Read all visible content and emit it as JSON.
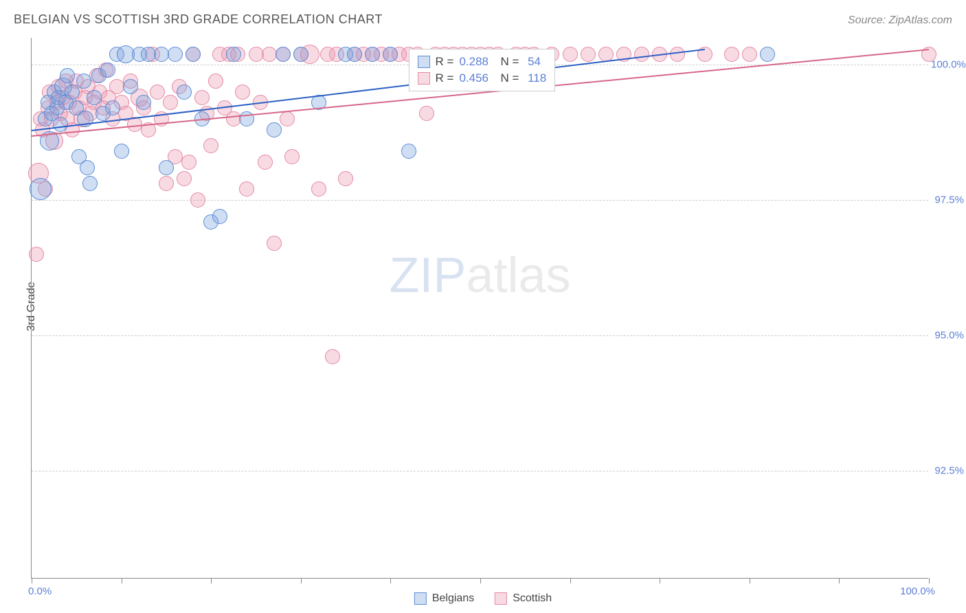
{
  "header": {
    "title": "BELGIAN VS SCOTTISH 3RD GRADE CORRELATION CHART",
    "source": "Source: ZipAtlas.com"
  },
  "watermark": {
    "part1": "ZIP",
    "part2": "atlas"
  },
  "chart": {
    "type": "scatter",
    "ylabel": "3rd Grade",
    "xlim": [
      0,
      100
    ],
    "ylim": [
      90.5,
      100.5
    ],
    "xtick_positions": [
      0,
      10,
      20,
      30,
      40,
      50,
      60,
      70,
      80,
      90,
      100
    ],
    "xtick_labels": {
      "first": "0.0%",
      "last": "100.0%"
    },
    "ytick_positions": [
      92.5,
      95.0,
      97.5,
      100.0
    ],
    "ytick_labels": [
      "92.5%",
      "95.0%",
      "97.5%",
      "100.0%"
    ],
    "background_color": "#ffffff",
    "grid_color": "#cccccc",
    "axis_color": "#888888",
    "tick_label_color": "#5b7fd6",
    "series": {
      "belgians": {
        "label": "Belgians",
        "fill_color": "rgba(120, 160, 220, 0.35)",
        "stroke_color": "#5b8cd6",
        "trend_color": "#2b5fc4",
        "marker_radius": 11,
        "R": "0.288",
        "N": "54",
        "trend": {
          "x1": 0,
          "y1": 98.8,
          "x2": 75,
          "y2": 100.3
        },
        "points": [
          [
            1.0,
            97.7,
            16
          ],
          [
            1.5,
            99.0,
            11
          ],
          [
            1.8,
            99.3,
            11
          ],
          [
            2.0,
            98.6,
            14
          ],
          [
            2.2,
            99.1,
            11
          ],
          [
            2.5,
            99.5,
            11
          ],
          [
            2.8,
            99.2,
            11
          ],
          [
            3.0,
            99.4,
            11
          ],
          [
            3.2,
            98.9,
            11
          ],
          [
            3.5,
            99.6,
            13
          ],
          [
            3.8,
            99.3,
            11
          ],
          [
            4.0,
            99.8,
            11
          ],
          [
            4.5,
            99.5,
            11
          ],
          [
            5.0,
            99.2,
            11
          ],
          [
            5.3,
            98.3,
            11
          ],
          [
            5.8,
            99.7,
            11
          ],
          [
            6.0,
            99.0,
            12
          ],
          [
            6.2,
            98.1,
            11
          ],
          [
            6.5,
            97.8,
            11
          ],
          [
            7.0,
            99.4,
            11
          ],
          [
            7.5,
            99.8,
            11
          ],
          [
            8.0,
            99.1,
            11
          ],
          [
            8.5,
            99.9,
            11
          ],
          [
            9.0,
            99.2,
            11
          ],
          [
            9.5,
            100.2,
            11
          ],
          [
            10.0,
            98.4,
            11
          ],
          [
            10.5,
            100.2,
            13
          ],
          [
            11.0,
            99.6,
            11
          ],
          [
            12.0,
            100.2,
            11
          ],
          [
            12.5,
            99.3,
            11
          ],
          [
            13.0,
            100.2,
            11
          ],
          [
            14.5,
            100.2,
            11
          ],
          [
            15.0,
            98.1,
            11
          ],
          [
            16.0,
            100.2,
            11
          ],
          [
            17.0,
            99.5,
            11
          ],
          [
            18.0,
            100.2,
            11
          ],
          [
            19.0,
            99.0,
            11
          ],
          [
            20.0,
            97.1,
            11
          ],
          [
            21.0,
            97.2,
            11
          ],
          [
            22.5,
            100.2,
            11
          ],
          [
            24.0,
            99.0,
            11
          ],
          [
            27.0,
            98.8,
            11
          ],
          [
            28.0,
            100.2,
            11
          ],
          [
            30.0,
            100.2,
            11
          ],
          [
            32.0,
            99.3,
            11
          ],
          [
            35.0,
            100.2,
            11
          ],
          [
            36.0,
            100.2,
            11
          ],
          [
            38.0,
            100.2,
            11
          ],
          [
            40.0,
            100.2,
            11
          ],
          [
            42.0,
            98.4,
            11
          ],
          [
            82.0,
            100.2,
            11
          ]
        ]
      },
      "scottish": {
        "label": "Scottish",
        "fill_color": "rgba(235, 150, 175, 0.35)",
        "stroke_color": "#e589a5",
        "trend_color": "#d66688",
        "marker_radius": 11,
        "R": "0.456",
        "N": "118",
        "trend": {
          "x1": 0,
          "y1": 98.7,
          "x2": 100,
          "y2": 100.3
        },
        "points": [
          [
            0.5,
            96.5,
            11
          ],
          [
            0.8,
            98.0,
            15
          ],
          [
            1.0,
            99.0,
            11
          ],
          [
            1.2,
            98.8,
            11
          ],
          [
            1.5,
            97.7,
            11
          ],
          [
            1.8,
            99.2,
            11
          ],
          [
            2.0,
            99.5,
            11
          ],
          [
            2.2,
            99.0,
            11
          ],
          [
            2.5,
            98.6,
            13
          ],
          [
            2.8,
            99.3,
            11
          ],
          [
            3.0,
            99.6,
            11
          ],
          [
            3.2,
            99.1,
            11
          ],
          [
            3.5,
            99.4,
            11
          ],
          [
            3.8,
            99.7,
            11
          ],
          [
            4.0,
            99.0,
            11
          ],
          [
            4.2,
            99.3,
            11
          ],
          [
            4.5,
            98.8,
            11
          ],
          [
            4.8,
            99.5,
            11
          ],
          [
            5.0,
            99.7,
            11
          ],
          [
            5.3,
            99.2,
            11
          ],
          [
            5.6,
            99.0,
            12
          ],
          [
            6.0,
            99.4,
            11
          ],
          [
            6.3,
            99.6,
            11
          ],
          [
            6.6,
            99.1,
            11
          ],
          [
            7.0,
            99.3,
            11
          ],
          [
            7.3,
            99.8,
            11
          ],
          [
            7.6,
            99.5,
            11
          ],
          [
            8.0,
            99.2,
            11
          ],
          [
            8.3,
            99.9,
            11
          ],
          [
            8.6,
            99.4,
            11
          ],
          [
            9.0,
            99.0,
            11
          ],
          [
            9.5,
            99.6,
            11
          ],
          [
            10.0,
            99.3,
            11
          ],
          [
            10.5,
            99.1,
            11
          ],
          [
            11.0,
            99.7,
            11
          ],
          [
            11.5,
            98.9,
            11
          ],
          [
            12.0,
            99.4,
            13
          ],
          [
            12.5,
            99.2,
            11
          ],
          [
            13.0,
            98.8,
            11
          ],
          [
            13.5,
            100.2,
            11
          ],
          [
            14.0,
            99.5,
            11
          ],
          [
            14.5,
            99.0,
            11
          ],
          [
            15.0,
            97.8,
            11
          ],
          [
            15.5,
            99.3,
            11
          ],
          [
            16.0,
            98.3,
            11
          ],
          [
            16.5,
            99.6,
            11
          ],
          [
            17.0,
            97.9,
            11
          ],
          [
            17.5,
            98.2,
            11
          ],
          [
            18.0,
            100.2,
            11
          ],
          [
            18.5,
            97.5,
            11
          ],
          [
            19.0,
            99.4,
            11
          ],
          [
            19.5,
            99.1,
            11
          ],
          [
            20.0,
            98.5,
            11
          ],
          [
            20.5,
            99.7,
            11
          ],
          [
            21.0,
            100.2,
            11
          ],
          [
            21.5,
            99.2,
            11
          ],
          [
            22.0,
            100.2,
            11
          ],
          [
            22.5,
            99.0,
            11
          ],
          [
            23.0,
            100.2,
            11
          ],
          [
            23.5,
            99.5,
            11
          ],
          [
            24.0,
            97.7,
            11
          ],
          [
            25.0,
            100.2,
            11
          ],
          [
            25.5,
            99.3,
            11
          ],
          [
            26.0,
            98.2,
            11
          ],
          [
            26.5,
            100.2,
            11
          ],
          [
            27.0,
            96.7,
            11
          ],
          [
            28.0,
            100.2,
            11
          ],
          [
            28.5,
            99.0,
            11
          ],
          [
            29.0,
            98.3,
            11
          ],
          [
            30.0,
            100.2,
            11
          ],
          [
            31.0,
            100.2,
            14
          ],
          [
            32.0,
            97.7,
            11
          ],
          [
            33.0,
            100.2,
            11
          ],
          [
            33.5,
            94.6,
            11
          ],
          [
            34.0,
            100.2,
            11
          ],
          [
            35.0,
            97.9,
            11
          ],
          [
            36.0,
            100.2,
            11
          ],
          [
            37.0,
            100.2,
            11
          ],
          [
            38.0,
            100.2,
            11
          ],
          [
            39.0,
            100.2,
            11
          ],
          [
            40.0,
            100.2,
            11
          ],
          [
            41.0,
            100.2,
            11
          ],
          [
            42.0,
            100.2,
            11
          ],
          [
            43.0,
            100.2,
            11
          ],
          [
            44.0,
            99.1,
            11
          ],
          [
            45.0,
            100.2,
            11
          ],
          [
            46.0,
            100.2,
            11
          ],
          [
            47.0,
            100.2,
            11
          ],
          [
            48.0,
            100.2,
            11
          ],
          [
            49.0,
            100.2,
            11
          ],
          [
            50.0,
            100.2,
            11
          ],
          [
            51.0,
            100.2,
            11
          ],
          [
            52.0,
            100.2,
            11
          ],
          [
            54.0,
            100.2,
            11
          ],
          [
            55.0,
            100.2,
            11
          ],
          [
            56.0,
            100.2,
            11
          ],
          [
            58.0,
            100.2,
            11
          ],
          [
            60.0,
            100.2,
            11
          ],
          [
            62.0,
            100.2,
            11
          ],
          [
            64.0,
            100.2,
            11
          ],
          [
            66.0,
            100.2,
            11
          ],
          [
            68.0,
            100.2,
            11
          ],
          [
            70.0,
            100.2,
            11
          ],
          [
            72.0,
            100.2,
            11
          ],
          [
            75.0,
            100.2,
            11
          ],
          [
            78.0,
            100.2,
            11
          ],
          [
            80.0,
            100.2,
            11
          ],
          [
            100.0,
            100.2,
            11
          ]
        ]
      }
    },
    "legend_box": {
      "rows": [
        {
          "swatch": "belgians",
          "r_label": "R =",
          "r_val": "0.288",
          "n_label": "N =",
          "n_val": "54"
        },
        {
          "swatch": "scottish",
          "r_label": "R =",
          "r_val": "0.456",
          "n_label": "N =",
          "n_val": "118"
        }
      ]
    },
    "bottom_legend": [
      {
        "swatch": "belgians",
        "label": "Belgians"
      },
      {
        "swatch": "scottish",
        "label": "Scottish"
      }
    ]
  }
}
